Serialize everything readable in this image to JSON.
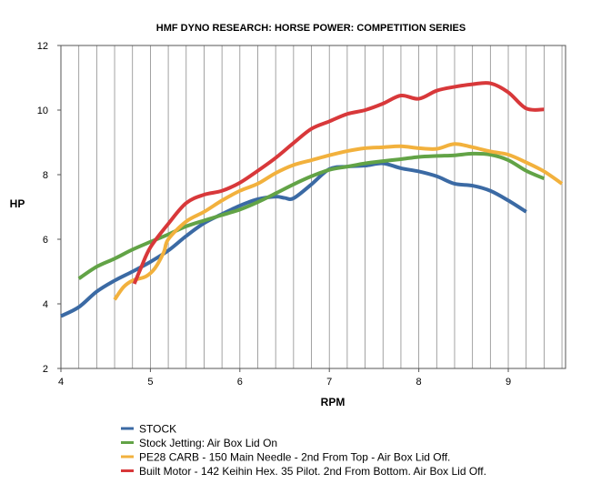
{
  "chart_data": {
    "type": "line",
    "title": "HMF DYNO RESEARCH: HORSE POWER: COMPETITION SERIES",
    "xlabel": "RPM",
    "ylabel": "HP",
    "xlim": [
      4,
      9.64
    ],
    "ylim": [
      2,
      12
    ],
    "x_ticks": [
      4,
      5,
      6,
      7,
      8,
      9
    ],
    "y_ticks": [
      2,
      4,
      6,
      8,
      10,
      12
    ],
    "grid": "vertical",
    "x_minor_step": 0.2,
    "legend_position": "bottom",
    "series": [
      {
        "name": "STOCK",
        "color": "#3b6aa4",
        "x": [
          4.0,
          4.2,
          4.4,
          4.6,
          4.8,
          5.0,
          5.2,
          5.4,
          5.6,
          5.8,
          6.0,
          6.2,
          6.4,
          6.5,
          6.6,
          6.8,
          7.0,
          7.2,
          7.4,
          7.6,
          7.8,
          8.0,
          8.2,
          8.4,
          8.6,
          8.8,
          9.0,
          9.2
        ],
        "y": [
          3.62,
          3.9,
          4.38,
          4.72,
          5.0,
          5.3,
          5.65,
          6.1,
          6.5,
          6.78,
          7.04,
          7.24,
          7.32,
          7.28,
          7.27,
          7.7,
          8.17,
          8.25,
          8.28,
          8.35,
          8.2,
          8.1,
          7.95,
          7.72,
          7.66,
          7.5,
          7.2,
          6.85
        ]
      },
      {
        "name": "Stock Jetting: Air Box Lid On",
        "color": "#62a346",
        "x": [
          4.2,
          4.4,
          4.6,
          4.8,
          5.0,
          5.2,
          5.4,
          5.6,
          5.8,
          6.0,
          6.2,
          6.4,
          6.6,
          6.8,
          7.0,
          7.2,
          7.4,
          7.6,
          7.8,
          8.0,
          8.2,
          8.4,
          8.6,
          8.8,
          9.0,
          9.2,
          9.4
        ],
        "y": [
          4.78,
          5.15,
          5.4,
          5.68,
          5.92,
          6.15,
          6.4,
          6.58,
          6.75,
          6.92,
          7.15,
          7.42,
          7.7,
          7.95,
          8.15,
          8.25,
          8.35,
          8.42,
          8.48,
          8.55,
          8.58,
          8.6,
          8.65,
          8.62,
          8.45,
          8.12,
          7.88
        ]
      },
      {
        "name": "PE28 CARB - 150 Main Needle - 2nd From Top - Air Box Lid Off.",
        "color": "#f2b13d",
        "x": [
          4.6,
          4.7,
          4.8,
          4.95,
          5.05,
          5.15,
          5.2,
          5.4,
          5.6,
          5.8,
          6.0,
          6.2,
          6.4,
          6.6,
          6.8,
          7.0,
          7.2,
          7.4,
          7.6,
          7.8,
          8.0,
          8.2,
          8.4,
          8.6,
          8.8,
          9.0,
          9.2,
          9.4,
          9.6
        ],
        "y": [
          4.13,
          4.52,
          4.72,
          4.85,
          5.1,
          5.6,
          6.0,
          6.55,
          6.85,
          7.2,
          7.5,
          7.72,
          8.05,
          8.3,
          8.45,
          8.6,
          8.73,
          8.82,
          8.85,
          8.88,
          8.82,
          8.8,
          8.95,
          8.85,
          8.72,
          8.62,
          8.38,
          8.1,
          7.72
        ]
      },
      {
        "name": "Built Motor - 142 Keihin Hex. 35 Pilot. 2nd From Bottom. Air Box Lid Off.",
        "color": "#d8383a",
        "x": [
          4.82,
          4.9,
          5.0,
          5.2,
          5.4,
          5.6,
          5.8,
          6.0,
          6.2,
          6.4,
          6.6,
          6.8,
          7.0,
          7.2,
          7.4,
          7.6,
          7.8,
          8.0,
          8.2,
          8.4,
          8.6,
          8.8,
          9.0,
          9.2,
          9.4
        ],
        "y": [
          4.62,
          5.15,
          5.75,
          6.48,
          7.12,
          7.38,
          7.5,
          7.75,
          8.12,
          8.52,
          8.98,
          9.42,
          9.65,
          9.88,
          10.0,
          10.2,
          10.45,
          10.35,
          10.6,
          10.72,
          10.8,
          10.83,
          10.55,
          10.05,
          10.02
        ]
      }
    ]
  }
}
